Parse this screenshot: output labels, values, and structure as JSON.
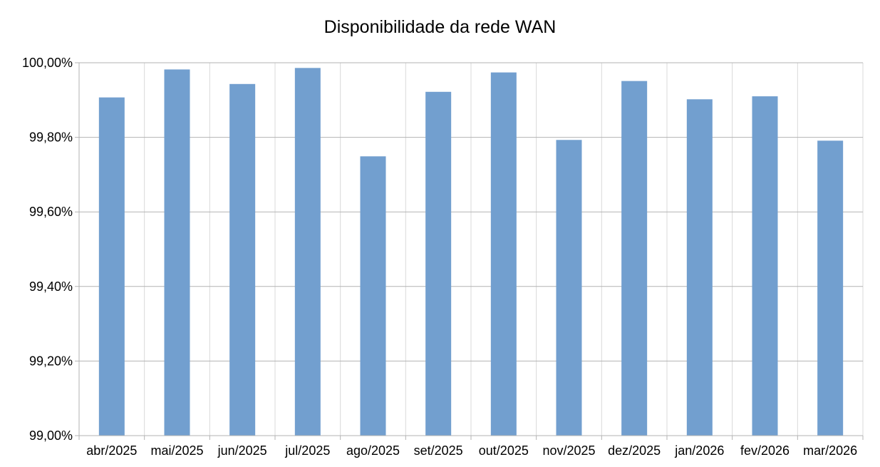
{
  "chart_data": {
    "type": "bar",
    "title": "Disponibilidade da rede WAN",
    "xlabel": "",
    "ylabel": "",
    "categories": [
      "abr/2025",
      "mai/2025",
      "jun/2025",
      "jul/2025",
      "ago/2025",
      "set/2025",
      "out/2025",
      "nov/2025",
      "dez/2025",
      "jan/2026",
      "fev/2026",
      "mar/2026"
    ],
    "values": [
      99.907,
      99.982,
      99.943,
      99.986,
      99.749,
      99.922,
      99.974,
      99.793,
      99.951,
      99.902,
      99.91,
      99.791
    ],
    "ylim": [
      99.0,
      100.0
    ],
    "y_ticks": [
      "99,00%",
      "99,20%",
      "99,40%",
      "99,60%",
      "99,80%",
      "100,00%"
    ],
    "grid": true,
    "legend": "none",
    "bar_color": "#729fcf",
    "grid_color": "#b3b3b3"
  }
}
